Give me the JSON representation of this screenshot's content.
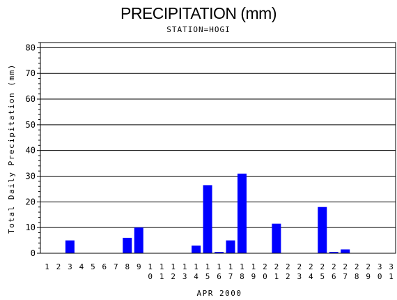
{
  "chart_data": {
    "type": "bar",
    "title": "PRECIPITATION (mm)",
    "subtitle": "STATION=HOGI",
    "xlabel": "APR 2000",
    "ylabel": "Total Daily Precipitation (mm)",
    "ylim": [
      0,
      82
    ],
    "yticks": [
      0,
      10,
      20,
      30,
      40,
      50,
      60,
      70,
      80
    ],
    "grid": true,
    "bar_color": "#0000ff",
    "categories": [
      "1",
      "2",
      "3",
      "4",
      "5",
      "6",
      "7",
      "8",
      "9",
      "10",
      "11",
      "12",
      "13",
      "14",
      "15",
      "16",
      "17",
      "18",
      "19",
      "20",
      "21",
      "22",
      "23",
      "24",
      "25",
      "26",
      "27",
      "28",
      "29",
      "30",
      "31"
    ],
    "values": [
      0,
      0,
      5,
      0,
      0,
      0,
      0,
      6,
      10,
      0,
      0,
      0,
      0,
      3,
      26.5,
      0.5,
      5,
      31,
      0,
      0,
      11.5,
      0,
      0,
      0,
      18,
      0.5,
      1.5,
      0,
      0,
      0,
      0
    ]
  }
}
